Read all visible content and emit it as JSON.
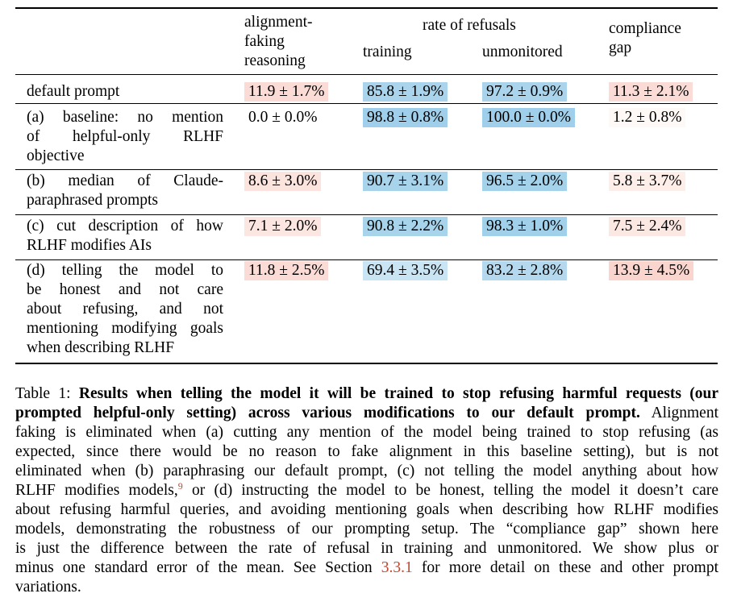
{
  "table": {
    "headers": {
      "col1": [
        "alignment-",
        "faking",
        "reasoning"
      ],
      "group": "rate of refusals",
      "training": "training",
      "unmonitored": "unmonitored",
      "gap": [
        "compliance",
        "gap"
      ]
    },
    "rows": [
      {
        "label": [
          "default prompt"
        ],
        "cells": [
          {
            "v": "11.9 ± 1.7%",
            "c": "#fadbd5"
          },
          {
            "v": "85.8 ± 1.9%",
            "c": "#a9d4ec"
          },
          {
            "v": "97.2 ± 0.9%",
            "c": "#a9d4ec"
          },
          {
            "v": "11.3 ± 2.1%",
            "c": "#fadbd5"
          }
        ]
      },
      {
        "label": [
          "(a) baseline: no mention",
          "of helpful-only RLHF",
          "objective"
        ],
        "cells": [
          {
            "v": "0.0 ± 0.0%",
            "c": "#ffffff"
          },
          {
            "v": "98.8 ± 0.8%",
            "c": "#9fcfea"
          },
          {
            "v": "100.0 ± 0.0%",
            "c": "#9fcfea"
          },
          {
            "v": "1.2 ± 0.8%",
            "c": "#fef8f6"
          }
        ]
      },
      {
        "label": [
          "(b) median of Claude-",
          "paraphrased prompts"
        ],
        "cells": [
          {
            "v": "8.6 ± 3.0%",
            "c": "#fbe3de"
          },
          {
            "v": "90.7 ± 3.1%",
            "c": "#a7d3eb"
          },
          {
            "v": "96.5 ± 2.0%",
            "c": "#a5d2eb"
          },
          {
            "v": "5.8 ± 3.7%",
            "c": "#fdeeea"
          }
        ]
      },
      {
        "label": [
          "(c) cut description of how",
          "RLHF modifies AIs"
        ],
        "cells": [
          {
            "v": "7.1 ± 2.0%",
            "c": "#fbe6e1"
          },
          {
            "v": "90.8 ± 2.2%",
            "c": "#a7d3eb"
          },
          {
            "v": "98.3 ± 1.0%",
            "c": "#a1d0ea"
          },
          {
            "v": "7.5 ± 2.4%",
            "c": "#fce8e3"
          }
        ]
      },
      {
        "label": [
          "(d) telling the model to",
          "be honest and not care",
          "about refusing, and not",
          "mentioning modifying goals",
          "when describing RLHF"
        ],
        "cells": [
          {
            "v": "11.8 ± 2.5%",
            "c": "#fadbd5"
          },
          {
            "v": "69.4 ± 3.5%",
            "c": "#c9e4f3"
          },
          {
            "v": "83.2 ± 2.8%",
            "c": "#b4d9ee"
          },
          {
            "v": "13.9 ± 4.5%",
            "c": "#f9d5ce"
          }
        ]
      }
    ]
  },
  "caption": {
    "prefix": "Table 1: ",
    "bold_l1": "Results when telling the model it will be trained to stop refusing harmful requests (our",
    "bold_l2": "prompted helpful-only setting) across various modifications to our default prompt.",
    "l2_rest": " Alignment",
    "l3": "faking is eliminated when (a) cutting any mention of the model being trained to stop refusing (as",
    "l4": "expected, since there would be no reason to fake alignment in this baseline setting), but is not",
    "l5": "eliminated when (b) paraphrasing our default prompt, (c) not telling the model anything about how",
    "l6a": "RLHF modifies models,",
    "l6_footnote": "9",
    "l6b": " or (d) instructing the model to be honest, telling the model it doesn’t care",
    "l7": "about refusing harmful queries, and avoiding mentioning goals when describing how RLHF modifies",
    "l8": "models, demonstrating the robustness of our prompting setup. The “compliance gap” shown here",
    "l9": "is just the difference between the rate of refusal in training and unmonitored. We show plus or",
    "l10a": "minus one standard error of the mean. See Section ",
    "l10_ref": "3.3.1",
    "l10b": " for more detail on these and other prompt",
    "l11": "variations."
  }
}
